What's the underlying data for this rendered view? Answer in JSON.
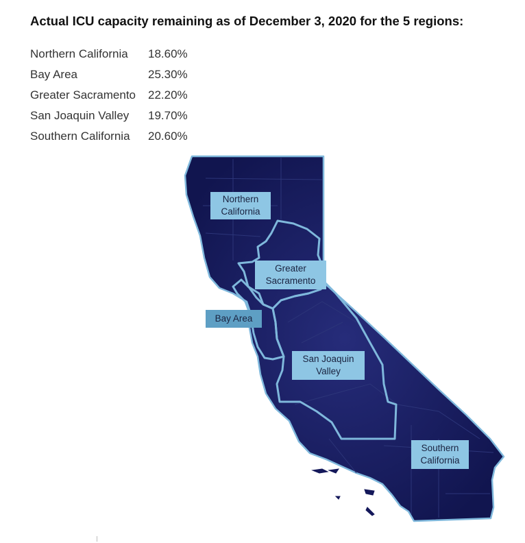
{
  "title": "Actual ICU capacity remaining as of December 3, 2020 for the 5 regions:",
  "regions": [
    {
      "name": "Northern California",
      "value": "18.60%"
    },
    {
      "name": "Bay Area",
      "value": "25.30%"
    },
    {
      "name": "Greater Sacramento",
      "value": "22.20%"
    },
    {
      "name": "San Joaquin Valley",
      "value": "19.70%"
    },
    {
      "name": "Southern California",
      "value": "20.60%"
    }
  ],
  "map_labels": {
    "northern_line1": "Northern",
    "northern_line2": "California",
    "sacramento_line1": "Greater",
    "sacramento_line2": "Sacramento",
    "bay": "Bay Area",
    "sjv_line1": "San Joaquin",
    "sjv_line2": "Valley",
    "southern_line1": "Southern",
    "southern_line2": "California"
  },
  "colors": {
    "state_fill": "#14185a",
    "region_border": "#7fb8dc",
    "label_bg": "#8ec6e4",
    "bay_label_bg": "#5e9fc4"
  }
}
